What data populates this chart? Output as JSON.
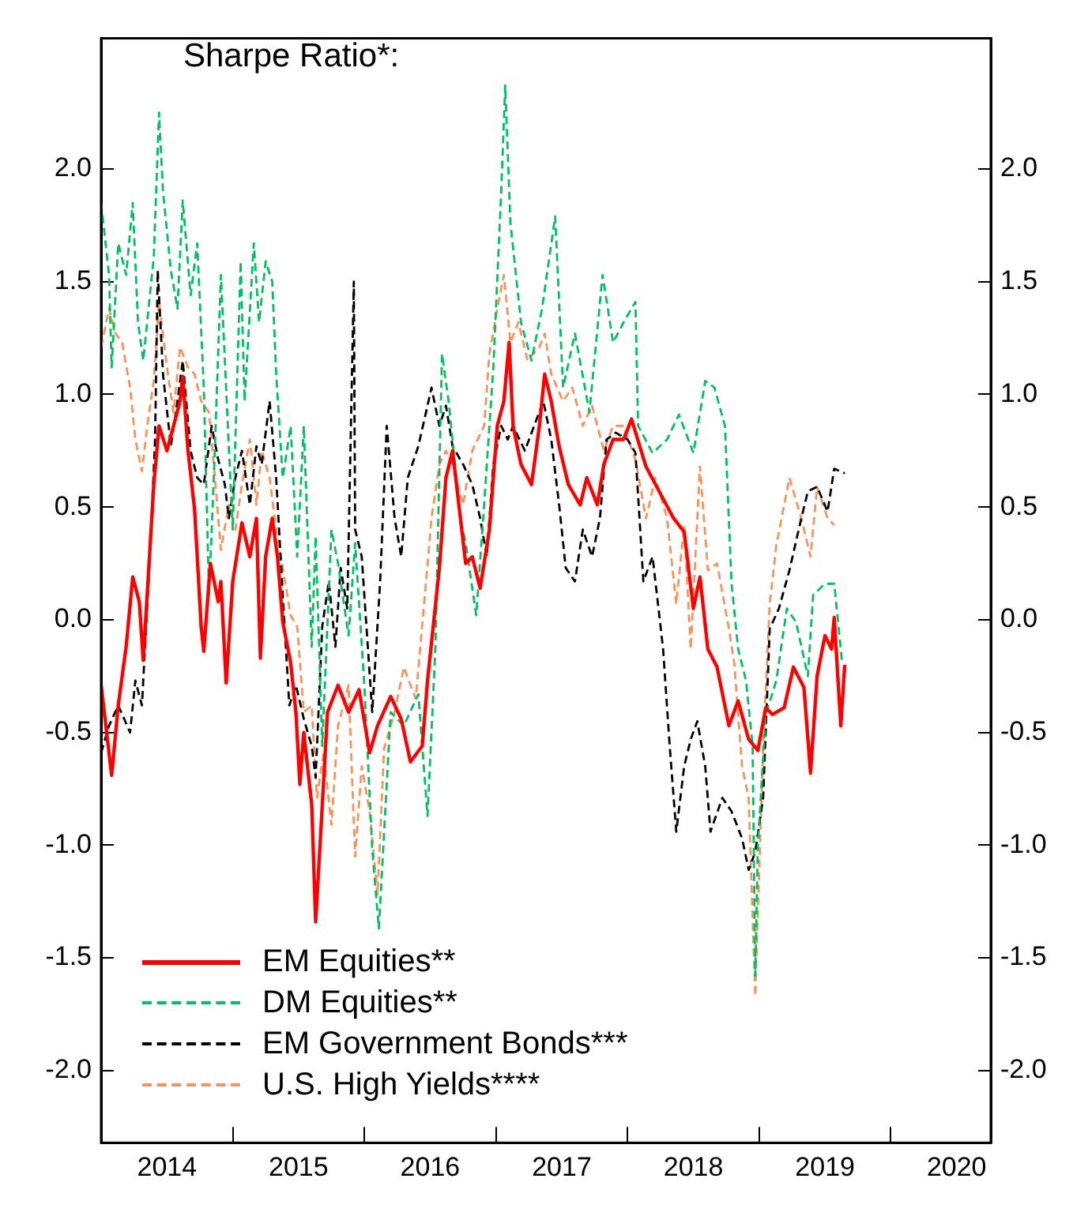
{
  "chart_data": {
    "type": "line",
    "title": "Sharpe Ratio*:",
    "xlim": [
      2014,
      2020.76
    ],
    "xticks": [
      {
        "value": 2015,
        "label": null
      },
      {
        "value": 2016,
        "label": null
      },
      {
        "value": 2017,
        "label": null
      },
      {
        "value": 2018,
        "label": null
      },
      {
        "value": 2019,
        "label": null
      },
      {
        "value": 2020,
        "label": null
      },
      {
        "value": 2014.5,
        "label": "2014"
      },
      {
        "value": 2015.5,
        "label": "2015"
      },
      {
        "value": 2016.5,
        "label": "2016"
      },
      {
        "value": 2017.5,
        "label": "2017"
      },
      {
        "value": 2018.5,
        "label": "2018"
      },
      {
        "value": 2019.5,
        "label": "2019"
      },
      {
        "value": 2020.5,
        "label": "2020"
      }
    ],
    "ylim": [
      -2.32,
      2.58
    ],
    "yticks": [
      {
        "value": -2,
        "label": "-2.0"
      },
      {
        "value": -1.5,
        "label": "-1.5"
      },
      {
        "value": -1,
        "label": "-1.0"
      },
      {
        "value": -0.5,
        "label": "-0.5"
      },
      {
        "value": 0,
        "label": "0.0"
      },
      {
        "value": 0.5,
        "label": "0.5"
      },
      {
        "value": 1,
        "label": "1.0"
      },
      {
        "value": 1.5,
        "label": "1.5"
      },
      {
        "value": 2,
        "label": "2.0"
      }
    ],
    "y2lim": [
      -2.32,
      2.58
    ],
    "y2ticks": [
      {
        "value": -2,
        "label": "-2.0"
      },
      {
        "value": -1.5,
        "label": "-1.5"
      },
      {
        "value": -1,
        "label": "-1.0"
      },
      {
        "value": -0.5,
        "label": "-0.5"
      },
      {
        "value": 0,
        "label": "0.0"
      },
      {
        "value": 0.5,
        "label": "0.5"
      },
      {
        "value": 1,
        "label": "1.0"
      },
      {
        "value": 1.5,
        "label": "1.5"
      },
      {
        "value": 2,
        "label": "2.0"
      }
    ],
    "grid": false,
    "legend": "bottom left",
    "marker": "none",
    "series": [
      {
        "name": "EM Equities**",
        "color": "#ff0000",
        "line_style": "solid",
        "x": [
          2014.0,
          2014.08,
          2014.13,
          2014.19,
          2014.24,
          2014.29,
          2014.32,
          2014.4,
          2014.44,
          2014.5,
          2014.55,
          2014.6,
          2014.62,
          2014.66,
          2014.71,
          2014.76,
          2014.78,
          2014.83,
          2014.89,
          2014.91,
          2014.95,
          2015.0,
          2015.07,
          2015.13,
          2015.18,
          2015.21,
          2015.25,
          2015.3,
          2015.34,
          2015.38,
          2015.44,
          2015.48,
          2015.51,
          2015.54,
          2015.6,
          2015.63,
          2015.67,
          2015.72,
          2015.8,
          2015.88,
          2015.96,
          2016.04,
          2016.1,
          2016.2,
          2016.28,
          2016.35,
          2016.44,
          2016.48,
          2016.57,
          2016.62,
          2016.67,
          2016.73,
          2016.77,
          2016.82,
          2016.88,
          2016.95,
          2017.01,
          2017.06,
          2017.1,
          2017.13,
          2017.19,
          2017.27,
          2017.33,
          2017.37,
          2017.42,
          2017.48,
          2017.55,
          2017.64,
          2017.69,
          2017.77,
          2017.82,
          2017.89,
          2017.97,
          2018.03,
          2018.14,
          2018.24,
          2018.35,
          2018.43,
          2018.5,
          2018.55,
          2018.61,
          2018.68,
          2018.77,
          2018.84,
          2018.92,
          2018.99,
          2019.05,
          2019.1,
          2019.19,
          2019.26,
          2019.34,
          2019.39,
          2019.44,
          2019.5,
          2019.55,
          2019.57,
          2019.62,
          2019.65
        ],
        "values": [
          -0.29,
          -0.69,
          -0.38,
          -0.12,
          0.19,
          0.08,
          -0.18,
          0.6,
          0.86,
          0.75,
          0.86,
          0.97,
          1.08,
          0.75,
          0.49,
          -0.03,
          -0.14,
          0.25,
          0.08,
          0.17,
          -0.28,
          0.17,
          0.43,
          0.28,
          0.45,
          -0.17,
          0.28,
          0.45,
          0.28,
          -0.01,
          -0.19,
          -0.41,
          -0.73,
          -0.5,
          -0.82,
          -1.34,
          -0.93,
          -0.41,
          -0.29,
          -0.41,
          -0.31,
          -0.59,
          -0.47,
          -0.34,
          -0.44,
          -0.63,
          -0.56,
          -0.27,
          0.23,
          0.63,
          0.75,
          0.45,
          0.25,
          0.28,
          0.14,
          0.4,
          0.86,
          0.97,
          1.23,
          0.86,
          0.69,
          0.6,
          0.86,
          1.09,
          0.97,
          0.77,
          0.6,
          0.51,
          0.63,
          0.51,
          0.69,
          0.8,
          0.8,
          0.89,
          0.68,
          0.57,
          0.45,
          0.39,
          0.05,
          0.19,
          -0.13,
          -0.21,
          -0.47,
          -0.36,
          -0.53,
          -0.58,
          -0.39,
          -0.42,
          -0.39,
          -0.21,
          -0.3,
          -0.68,
          -0.25,
          -0.07,
          -0.13,
          0.01,
          -0.47,
          -0.2
        ]
      },
      {
        "name": "DM Equities**",
        "color": "#00c060",
        "line_style": "dashed",
        "x": [
          2014.0,
          2014.06,
          2014.08,
          2014.13,
          2014.19,
          2014.24,
          2014.28,
          2014.32,
          2014.4,
          2014.44,
          2014.47,
          2014.53,
          2014.58,
          2014.62,
          2014.68,
          2014.73,
          2014.78,
          2014.82,
          2014.86,
          2014.91,
          2014.97,
          2015.0,
          2015.06,
          2015.09,
          2015.16,
          2015.2,
          2015.25,
          2015.3,
          2015.33,
          2015.38,
          2015.44,
          2015.49,
          2015.54,
          2015.6,
          2015.63,
          2015.68,
          2015.75,
          2015.8,
          2015.88,
          2015.93,
          2016.0,
          2016.06,
          2016.11,
          2016.2,
          2016.3,
          2016.41,
          2016.48,
          2016.54,
          2016.59,
          2016.64,
          2016.73,
          2016.77,
          2016.85,
          2016.91,
          2016.98,
          2017.04,
          2017.07,
          2017.11,
          2017.19,
          2017.27,
          2017.35,
          2017.45,
          2017.51,
          2017.6,
          2017.71,
          2017.81,
          2017.89,
          2017.97,
          2018.06,
          2018.08,
          2018.19,
          2018.3,
          2018.39,
          2018.5,
          2018.59,
          2018.66,
          2018.74,
          2018.79,
          2018.84,
          2018.9,
          2018.95,
          2018.97,
          2018.99,
          2019.05,
          2019.13,
          2019.21,
          2019.28,
          2019.37,
          2019.41,
          2019.5,
          2019.57,
          2019.63
        ],
        "values": [
          1.85,
          1.53,
          1.12,
          1.67,
          1.53,
          1.85,
          1.32,
          1.15,
          1.61,
          2.25,
          1.9,
          1.55,
          1.38,
          1.86,
          1.44,
          1.67,
          1.03,
          0.11,
          0.69,
          1.53,
          0.77,
          0.4,
          1.59,
          0.97,
          1.67,
          1.32,
          1.59,
          1.5,
          1.09,
          0.63,
          0.86,
          0.28,
          0.86,
          -0.12,
          0.37,
          -0.56,
          0.4,
          0.25,
          -0.07,
          0.34,
          -0.29,
          -1.02,
          -1.37,
          -0.41,
          -0.47,
          -0.33,
          -0.87,
          -0.12,
          1.18,
          0.97,
          0.45,
          0.34,
          0.02,
          0.51,
          1.12,
          1.9,
          2.37,
          1.76,
          1.32,
          1.15,
          1.38,
          1.79,
          1.03,
          1.27,
          0.92,
          1.53,
          1.23,
          1.32,
          1.41,
          0.86,
          0.74,
          0.8,
          0.91,
          0.74,
          1.06,
          1.03,
          0.86,
          0.16,
          -0.13,
          -0.27,
          -0.56,
          -1.58,
          -1.0,
          -0.42,
          -0.27,
          0.05,
          -0.01,
          -0.25,
          0.11,
          0.16,
          0.16,
          -0.19
        ]
      },
      {
        "name": "EM Government Bonds***",
        "color": "#000000",
        "line_style": "dashed",
        "x": [
          2014.0,
          2014.06,
          2014.13,
          2014.22,
          2014.26,
          2014.31,
          2014.37,
          2014.41,
          2014.43,
          2014.47,
          2014.53,
          2014.58,
          2014.62,
          2014.68,
          2014.73,
          2014.78,
          2014.84,
          2014.89,
          2014.94,
          2014.97,
          2015.02,
          2015.07,
          2015.13,
          2015.18,
          2015.22,
          2015.28,
          2015.33,
          2015.38,
          2015.43,
          2015.48,
          2015.54,
          2015.6,
          2015.63,
          2015.68,
          2015.73,
          2015.78,
          2015.82,
          2015.87,
          2015.92,
          2015.93,
          2015.98,
          2016.06,
          2016.12,
          2016.17,
          2016.23,
          2016.28,
          2016.33,
          2016.41,
          2016.48,
          2016.51,
          2016.57,
          2016.62,
          2016.67,
          2016.75,
          2016.82,
          2016.88,
          2016.93,
          2016.98,
          2017.04,
          2017.09,
          2017.13,
          2017.22,
          2017.29,
          2017.36,
          2017.42,
          2017.48,
          2017.53,
          2017.6,
          2017.66,
          2017.73,
          2017.79,
          2017.84,
          2017.91,
          2018.0,
          2018.06,
          2018.12,
          2018.19,
          2018.27,
          2018.32,
          2018.37,
          2018.43,
          2018.48,
          2018.53,
          2018.59,
          2018.63,
          2018.72,
          2018.79,
          2018.87,
          2018.92,
          2018.97,
          2019.03,
          2019.08,
          2019.15,
          2019.23,
          2019.32,
          2019.37,
          2019.44,
          2019.52,
          2019.57,
          2019.65
        ],
        "values": [
          -0.59,
          -0.47,
          -0.38,
          -0.5,
          -0.27,
          -0.38,
          0.28,
          0.8,
          1.55,
          1.09,
          0.77,
          0.97,
          1.15,
          0.75,
          0.63,
          0.6,
          0.86,
          0.71,
          0.6,
          0.45,
          0.63,
          0.75,
          0.51,
          0.77,
          0.69,
          0.97,
          0.63,
          0.11,
          -0.38,
          -0.29,
          -0.44,
          -0.56,
          -0.7,
          -0.03,
          0.17,
          -0.12,
          0.23,
          0.05,
          1.5,
          0.4,
          0.28,
          -0.41,
          0.17,
          0.86,
          0.45,
          0.28,
          0.63,
          0.77,
          0.95,
          1.03,
          0.86,
          0.95,
          0.77,
          0.69,
          0.6,
          0.45,
          0.28,
          0.69,
          0.86,
          0.8,
          0.86,
          0.75,
          0.86,
          0.97,
          0.8,
          0.51,
          0.23,
          0.17,
          0.4,
          0.28,
          0.45,
          0.8,
          0.83,
          0.8,
          0.74,
          0.17,
          0.28,
          -0.13,
          -0.56,
          -0.94,
          -0.65,
          -0.53,
          -0.45,
          -0.65,
          -0.94,
          -0.79,
          -0.85,
          -0.97,
          -1.11,
          -1.03,
          -0.79,
          -0.04,
          0.05,
          0.22,
          0.45,
          0.57,
          0.59,
          0.48,
          0.67,
          0.65
        ]
      },
      {
        "name": "U.S. High Yields****",
        "color": "#f7935a",
        "line_style": "dashed",
        "x": [
          2014.0,
          2014.06,
          2014.11,
          2014.16,
          2014.22,
          2014.26,
          2014.31,
          2014.35,
          2014.4,
          2014.44,
          2014.5,
          2014.55,
          2014.6,
          2014.66,
          2014.71,
          2014.76,
          2014.82,
          2014.86,
          2014.91,
          2014.97,
          2015.02,
          2015.07,
          2015.13,
          2015.18,
          2015.22,
          2015.28,
          2015.33,
          2015.38,
          2015.44,
          2015.49,
          2015.54,
          2015.6,
          2015.64,
          2015.69,
          2015.75,
          2015.8,
          2015.88,
          2015.93,
          2015.98,
          2016.04,
          2016.1,
          2016.15,
          2016.23,
          2016.3,
          2016.39,
          2016.46,
          2016.51,
          2016.57,
          2016.62,
          2016.67,
          2016.75,
          2016.82,
          2016.91,
          2016.95,
          2017.01,
          2017.06,
          2017.11,
          2017.17,
          2017.24,
          2017.33,
          2017.37,
          2017.42,
          2017.51,
          2017.58,
          2017.66,
          2017.73,
          2017.82,
          2017.89,
          2017.97,
          2018.06,
          2018.14,
          2018.21,
          2018.3,
          2018.37,
          2018.43,
          2018.48,
          2018.55,
          2018.61,
          2018.68,
          2018.77,
          2018.81,
          2018.87,
          2018.92,
          2018.97,
          2019.03,
          2019.08,
          2019.13,
          2019.19,
          2019.23,
          2019.32,
          2019.39,
          2019.44,
          2019.52,
          2019.57
        ],
        "values": [
          1.21,
          1.38,
          1.27,
          1.23,
          1.03,
          0.8,
          0.66,
          0.86,
          1.06,
          1.41,
          1.12,
          0.92,
          1.21,
          1.12,
          1.09,
          0.97,
          0.92,
          0.66,
          0.31,
          0.51,
          0.4,
          0.6,
          0.8,
          0.51,
          0.75,
          0.63,
          0.4,
          0.23,
          0.02,
          -0.03,
          -0.41,
          -0.38,
          -0.79,
          -0.59,
          -0.91,
          -0.47,
          -0.29,
          -1.05,
          -0.65,
          -0.85,
          -1.22,
          -0.57,
          -0.41,
          -0.21,
          -0.35,
          0.11,
          0.45,
          0.69,
          0.75,
          0.69,
          0.51,
          0.75,
          0.86,
          1.18,
          1.38,
          1.53,
          1.23,
          1.32,
          1.15,
          1.21,
          1.27,
          1.09,
          0.97,
          1.03,
          0.86,
          0.95,
          0.75,
          0.86,
          0.86,
          0.71,
          0.45,
          0.63,
          0.45,
          0.07,
          0.42,
          -0.13,
          0.68,
          0.22,
          0.25,
          -0.04,
          -0.19,
          -0.65,
          -0.79,
          -1.67,
          -0.56,
          0.07,
          0.33,
          0.51,
          0.63,
          0.45,
          0.28,
          0.59,
          0.45,
          0.42
        ]
      }
    ]
  }
}
